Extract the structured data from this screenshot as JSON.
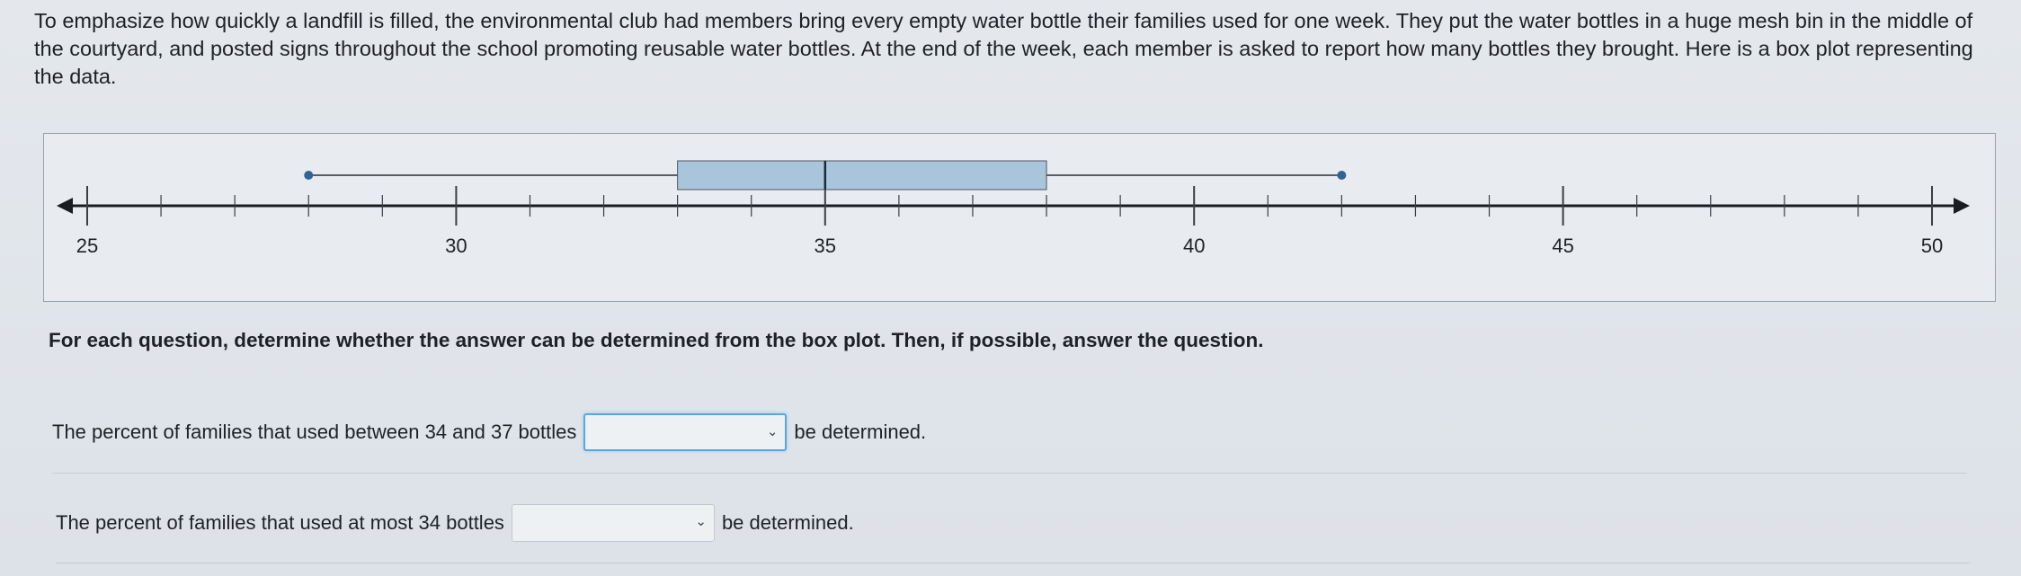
{
  "intro_text": "To emphasize how quickly a landfill is filled, the environmental club had members bring every empty water bottle their families used for one week. They put the water bottles in a huge mesh bin in the middle of the courtyard, and posted signs throughout the school promoting reusable water bottles. At the end of the week, each member is asked to report how many bottles they brought. Here is a box plot representing the data.",
  "chart_data": {
    "type": "boxplot",
    "axis_min": 25,
    "axis_max": 50,
    "major_ticks": [
      25,
      30,
      35,
      40,
      45,
      50
    ],
    "minor_step": 1,
    "min": 28,
    "q1": 33,
    "median": 35,
    "q3": 38,
    "max": 42,
    "box_color": "#a9c5dc",
    "whisker_dot_color": "#2f6496"
  },
  "question_heading": "For each question, determine whether the answer can be determined from the box plot. Then, if possible, answer the question.",
  "questions": [
    {
      "text": "The percent of families that used between 34 and 37 bottles",
      "dropdown_value": "",
      "suffix": "be determined."
    },
    {
      "text": "The percent of families that used at most 34 bottles",
      "dropdown_value": "",
      "suffix": "be determined."
    }
  ]
}
